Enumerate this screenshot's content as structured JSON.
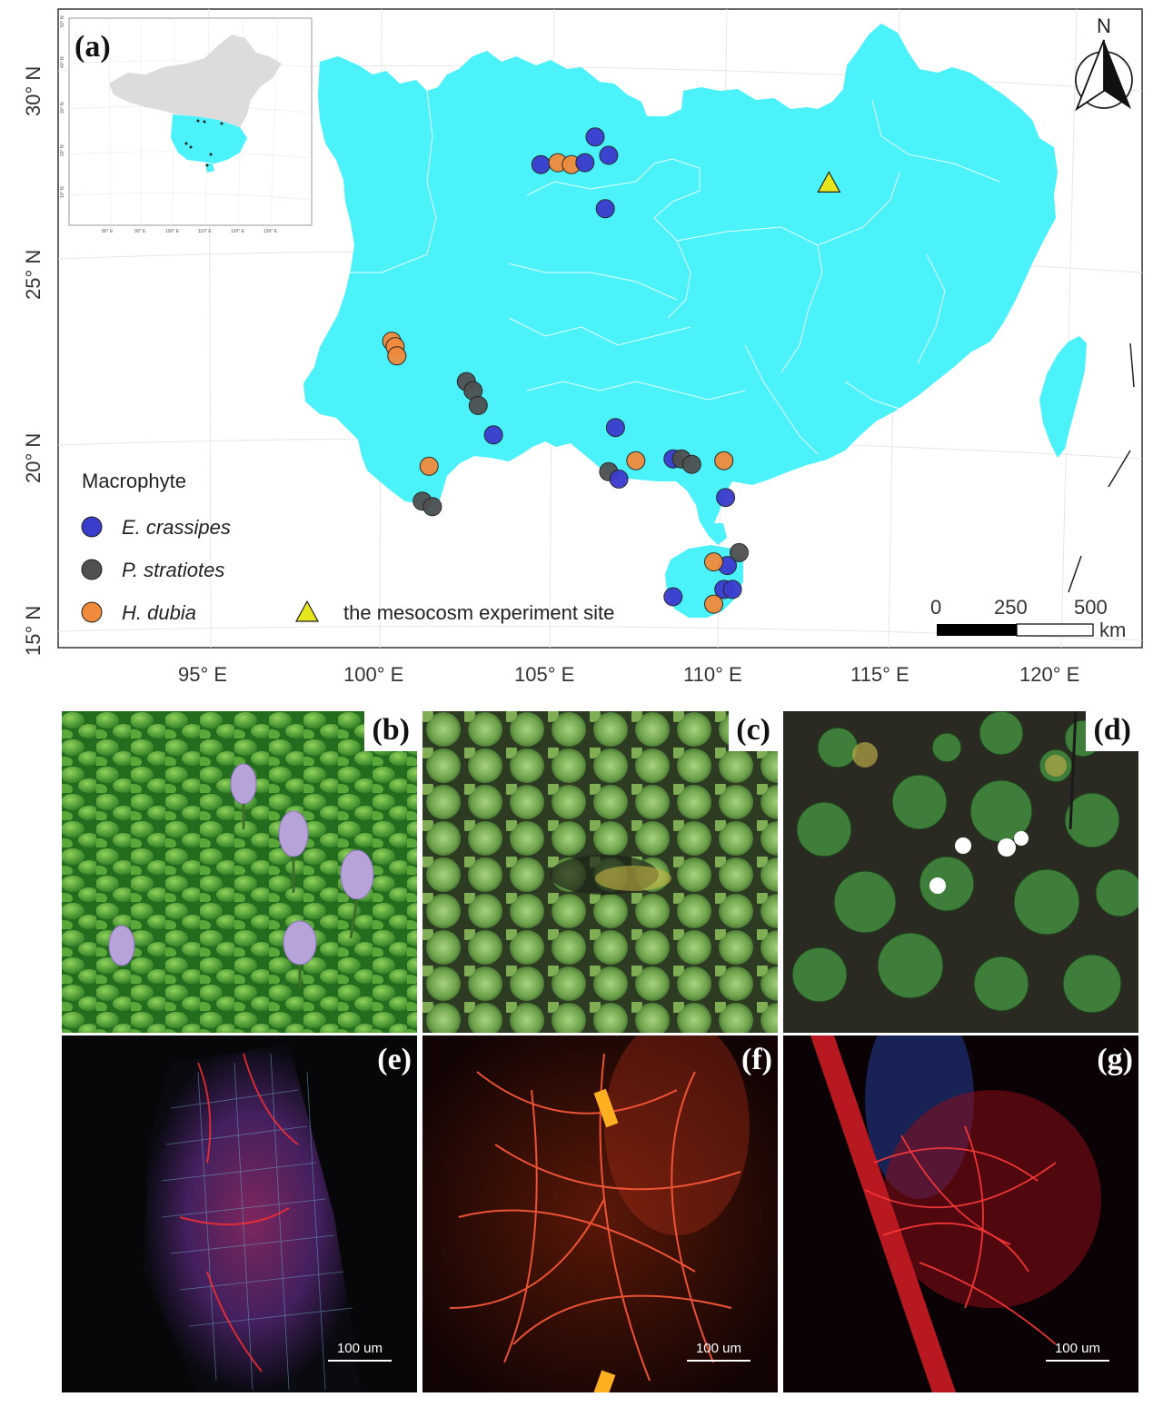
{
  "panel_a": {
    "label": "(a)",
    "lat_labels": [
      "30° N",
      "25° N",
      "20° N",
      "15° N"
    ],
    "lon_labels": [
      "95° E",
      "100° E",
      "105° E",
      "110° E",
      "115° E",
      "120° E"
    ],
    "north": "N",
    "scale": {
      "n0": "0",
      "n1": "250",
      "n2": "500",
      "unit": "km"
    },
    "legend": {
      "title": "Macrophyte",
      "species": [
        {
          "name": "E. crassipes",
          "color": "#3b3bcc"
        },
        {
          "name": "P. stratiotes",
          "color": "#505050"
        },
        {
          "name": "H. dubia",
          "color": "#f08a3c"
        }
      ],
      "site": {
        "name": "the mesocosm experiment site",
        "color": "#e6e61e"
      }
    },
    "region_color": "#4cf2fa",
    "sites": [
      {
        "lon": 104.7,
        "lat": 27.7,
        "sp": 0
      },
      {
        "lon": 105.2,
        "lat": 27.75,
        "sp": 2
      },
      {
        "lon": 105.6,
        "lat": 27.7,
        "sp": 2
      },
      {
        "lon": 106.0,
        "lat": 27.75,
        "sp": 0
      },
      {
        "lon": 106.3,
        "lat": 28.45,
        "sp": 0
      },
      {
        "lon": 106.7,
        "lat": 27.95,
        "sp": 0
      },
      {
        "lon": 106.6,
        "lat": 26.5,
        "sp": 0
      },
      {
        "lon": 100.3,
        "lat": 22.9,
        "sp": 2
      },
      {
        "lon": 100.4,
        "lat": 22.75,
        "sp": 2
      },
      {
        "lon": 100.45,
        "lat": 22.5,
        "sp": 2
      },
      {
        "lon": 102.5,
        "lat": 21.8,
        "sp": 1
      },
      {
        "lon": 102.7,
        "lat": 21.55,
        "sp": 1
      },
      {
        "lon": 102.85,
        "lat": 21.15,
        "sp": 1
      },
      {
        "lon": 103.3,
        "lat": 20.35,
        "sp": 0
      },
      {
        "lon": 101.4,
        "lat": 19.5,
        "sp": 2
      },
      {
        "lon": 101.2,
        "lat": 18.55,
        "sp": 1
      },
      {
        "lon": 101.5,
        "lat": 18.4,
        "sp": 1
      },
      {
        "lon": 106.9,
        "lat": 20.55,
        "sp": 0
      },
      {
        "lon": 106.7,
        "lat": 19.35,
        "sp": 1
      },
      {
        "lon": 107.0,
        "lat": 19.15,
        "sp": 0
      },
      {
        "lon": 107.5,
        "lat": 19.65,
        "sp": 2
      },
      {
        "lon": 108.6,
        "lat": 19.7,
        "sp": 0
      },
      {
        "lon": 108.85,
        "lat": 19.7,
        "sp": 1
      },
      {
        "lon": 109.15,
        "lat": 19.55,
        "sp": 1
      },
      {
        "lon": 110.1,
        "lat": 19.65,
        "sp": 2
      },
      {
        "lon": 110.15,
        "lat": 18.65,
        "sp": 0
      },
      {
        "lon": 110.55,
        "lat": 17.15,
        "sp": 1
      },
      {
        "lon": 110.2,
        "lat": 16.8,
        "sp": 0
      },
      {
        "lon": 109.8,
        "lat": 16.9,
        "sp": 2
      },
      {
        "lon": 110.1,
        "lat": 16.15,
        "sp": 0
      },
      {
        "lon": 110.35,
        "lat": 16.15,
        "sp": 0
      },
      {
        "lon": 108.6,
        "lat": 15.95,
        "sp": 0
      },
      {
        "lon": 109.8,
        "lat": 15.75,
        "sp": 2
      }
    ],
    "experiment_site": {
      "lon": 113.2,
      "lat": 27.2
    }
  },
  "panels": [
    {
      "label": "(b)"
    },
    {
      "label": "(c)"
    },
    {
      "label": "(d)"
    },
    {
      "label": "(e)",
      "scale": "100 um"
    },
    {
      "label": "(f)",
      "scale": "100 um"
    },
    {
      "label": "(g)",
      "scale": "100 um"
    }
  ]
}
